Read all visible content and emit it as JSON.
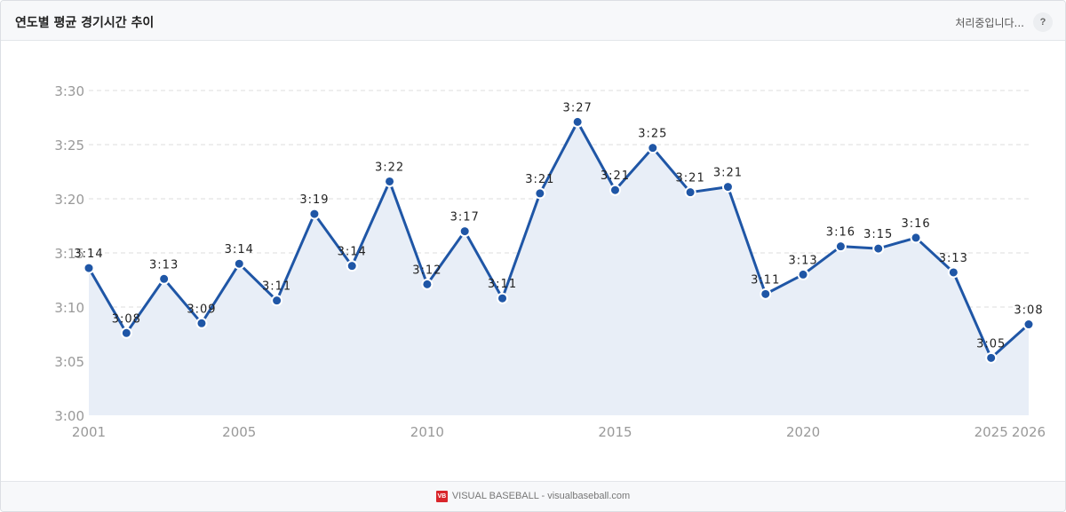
{
  "header": {
    "title": "연도별 평균 경기시간 추이",
    "status": "처리중입니다...",
    "help_label": "?"
  },
  "footer": {
    "logo_text": "VB",
    "text": "VISUAL BASEBALL - visualbaseball.com"
  },
  "colors": {
    "line": "#1f56a6",
    "fill": "#e8eef7",
    "grid": "#dddddd",
    "axis_text": "#999999"
  },
  "chart_data": {
    "type": "area",
    "title": "연도별 평균 경기시간 추이",
    "xlabel": "",
    "ylabel": "",
    "grid": true,
    "y_unit": "minutes",
    "ylim": [
      180,
      210
    ],
    "yticks": [
      {
        "value": 180,
        "label": "3:00"
      },
      {
        "value": 185,
        "label": "3:05"
      },
      {
        "value": 190,
        "label": "3:10"
      },
      {
        "value": 195,
        "label": "3:15"
      },
      {
        "value": 200,
        "label": "3:20"
      },
      {
        "value": 205,
        "label": "3:25"
      },
      {
        "value": 210,
        "label": "3:30"
      }
    ],
    "xlim": [
      2001,
      2026
    ],
    "xticks": [
      2001,
      2005,
      2010,
      2015,
      2020,
      2025,
      2026
    ],
    "x": [
      2001,
      2002,
      2003,
      2004,
      2005,
      2006,
      2007,
      2008,
      2009,
      2010,
      2011,
      2012,
      2013,
      2014,
      2015,
      2016,
      2017,
      2018,
      2019,
      2020,
      2021,
      2022,
      2023,
      2024,
      2025,
      2026
    ],
    "values": [
      193.6,
      187.6,
      192.6,
      188.5,
      194.0,
      190.6,
      198.6,
      193.8,
      201.6,
      192.1,
      197.0,
      190.8,
      200.5,
      207.1,
      200.8,
      204.7,
      200.6,
      201.1,
      191.2,
      193.0,
      195.6,
      195.4,
      196.4,
      193.2,
      185.3,
      188.4
    ],
    "labels": [
      "3:14",
      "3:08",
      "3:13",
      "3:09",
      "3:14",
      "3:11",
      "3:19",
      "3:14",
      "3:22",
      "3:12",
      "3:17",
      "3:11",
      "3:21",
      "3:27",
      "3:21",
      "3:25",
      "3:21",
      "3:21",
      "3:11",
      "3:13",
      "3:16",
      "3:15",
      "3:16",
      "3:13",
      "3:05",
      "3:08"
    ]
  }
}
